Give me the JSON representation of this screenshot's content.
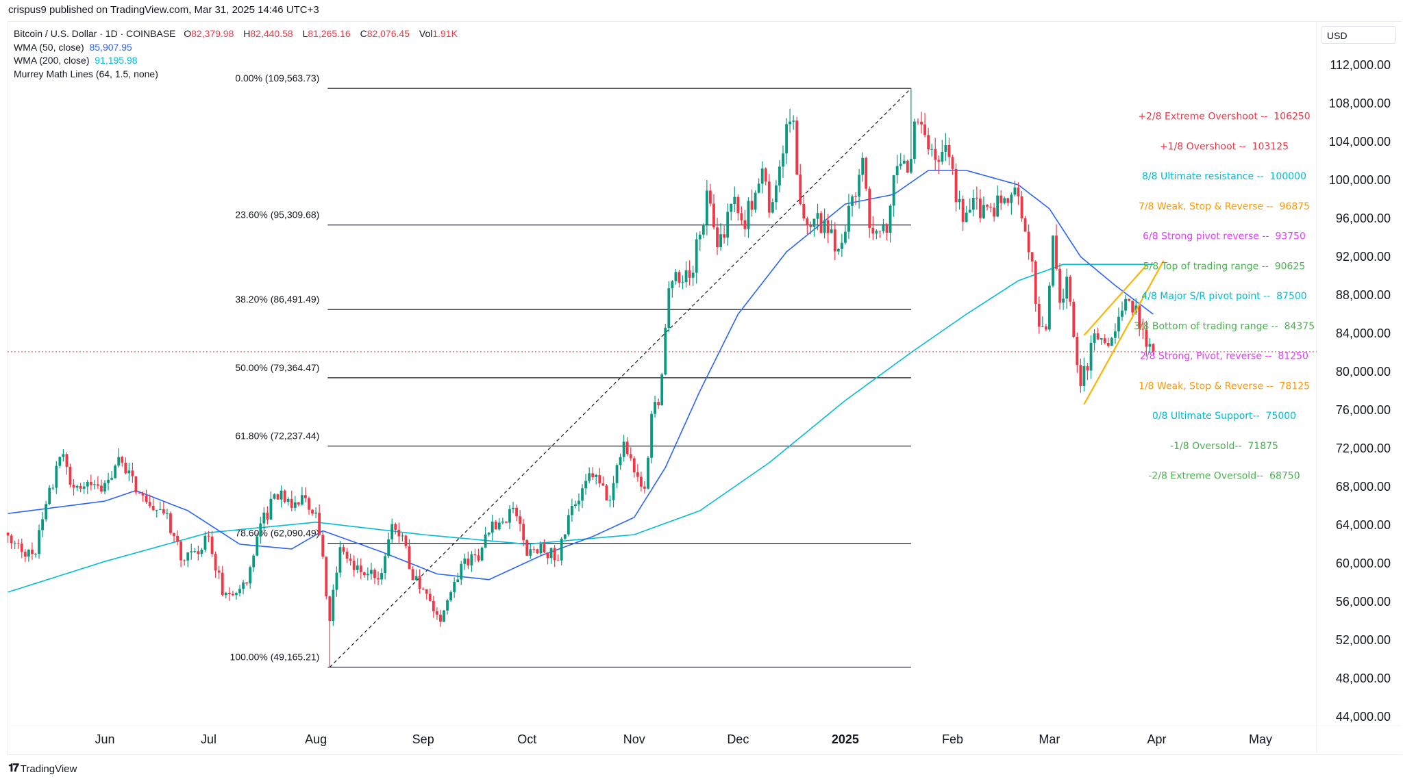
{
  "published": "crispus9 published on TradingView.com, Mar 31, 2025 14:46 UTC+3",
  "legend": {
    "symbol": "Bitcoin / U.S. Dollar · 1D · COINBASE",
    "o_label": "O",
    "o": "82,379.98",
    "h_label": "H",
    "h": "82,440.58",
    "l_label": "L",
    "l": "81,265.16",
    "c_label": "C",
    "c": "82,076.45",
    "vol_label": "Vol",
    "vol": "1.91K",
    "wma50": {
      "label": "WMA (50, close)",
      "value": "85,907.95"
    },
    "wma200": {
      "label": "WMA (200, close)",
      "value": "91,195.98"
    },
    "murrey": {
      "label": "Murrey Math Lines (64, 1.5, none)"
    }
  },
  "currency": "USD",
  "footer": {
    "brand": "TradingView"
  },
  "colors": {
    "up": "#089981",
    "down": "#F23645",
    "wma50": "#2962FF",
    "wma200": "#00BCD4",
    "wedge": "#FFB300",
    "last_price": "#F23645"
  },
  "chart_data": {
    "type": "candlestick",
    "title": "",
    "ylim": [
      42000,
      114000
    ],
    "grid": false,
    "y_ticks": [
      "112,000.00",
      "108,000.00",
      "104,000.00",
      "100,000.00",
      "96,000.00",
      "92,000.00",
      "88,000.00",
      "84,000.00",
      "80,000.00",
      "76,000.00",
      "72,000.00",
      "68,000.00",
      "64,000.00",
      "60,000.00",
      "56,000.00",
      "52,000.00",
      "48,000.00",
      "44,000.00"
    ],
    "x_ticks": [
      {
        "date": "2024-06-01",
        "label": "Jun"
      },
      {
        "date": "2024-07-01",
        "label": "Jul"
      },
      {
        "date": "2024-08-01",
        "label": "Aug"
      },
      {
        "date": "2024-09-01",
        "label": "Sep"
      },
      {
        "date": "2024-10-01",
        "label": "Oct"
      },
      {
        "date": "2024-11-01",
        "label": "Nov"
      },
      {
        "date": "2024-12-01",
        "label": "Dec"
      },
      {
        "date": "2025-01-01",
        "label": "2025",
        "bold": true
      },
      {
        "date": "2025-02-01",
        "label": "Feb"
      },
      {
        "date": "2025-03-01",
        "label": "Mar"
      },
      {
        "date": "2025-04-01",
        "label": "Apr"
      },
      {
        "date": "2025-05-01",
        "label": "May"
      }
    ],
    "close_path": [
      [
        "2024-05-04",
        62.9
      ],
      [
        "2024-05-08",
        61.2
      ],
      [
        "2024-05-12",
        61.0
      ],
      [
        "2024-05-15",
        66.2
      ],
      [
        "2024-05-20",
        71.4
      ],
      [
        "2024-05-23",
        67.9
      ],
      [
        "2024-05-27",
        68.5
      ],
      [
        "2024-05-31",
        67.5
      ],
      [
        "2024-06-05",
        71.1
      ],
      [
        "2024-06-07",
        69.4
      ],
      [
        "2024-06-11",
        67.3
      ],
      [
        "2024-06-14",
        66.0
      ],
      [
        "2024-06-18",
        65.2
      ],
      [
        "2024-06-24",
        60.3
      ],
      [
        "2024-06-28",
        61.0
      ],
      [
        "2024-07-01",
        62.8
      ],
      [
        "2024-07-05",
        56.7
      ],
      [
        "2024-07-08",
        56.7
      ],
      [
        "2024-07-12",
        57.9
      ],
      [
        "2024-07-15",
        62.8
      ],
      [
        "2024-07-20",
        67.2
      ],
      [
        "2024-07-22",
        67.6
      ],
      [
        "2024-07-25",
        65.8
      ],
      [
        "2024-07-29",
        66.8
      ],
      [
        "2024-08-01",
        65.3
      ],
      [
        "2024-08-03",
        60.7
      ],
      [
        "2024-08-05",
        54.0
      ],
      [
        "2024-08-08",
        61.7
      ],
      [
        "2024-08-12",
        59.3
      ],
      [
        "2024-08-16",
        58.9
      ],
      [
        "2024-08-20",
        59.0
      ],
      [
        "2024-08-23",
        64.1
      ],
      [
        "2024-08-26",
        62.9
      ],
      [
        "2024-08-28",
        59.4
      ],
      [
        "2024-09-01",
        57.3
      ],
      [
        "2024-09-06",
        53.9
      ],
      [
        "2024-09-09",
        57.0
      ],
      [
        "2024-09-13",
        60.5
      ],
      [
        "2024-09-17",
        60.3
      ],
      [
        "2024-09-20",
        63.2
      ],
      [
        "2024-09-27",
        65.8
      ],
      [
        "2024-10-01",
        60.8
      ],
      [
        "2024-10-05",
        62.0
      ],
      [
        "2024-10-10",
        60.3
      ],
      [
        "2024-10-14",
        66.0
      ],
      [
        "2024-10-20",
        69.0
      ],
      [
        "2024-10-25",
        66.6
      ],
      [
        "2024-10-29",
        72.7
      ],
      [
        "2024-11-01",
        69.5
      ],
      [
        "2024-11-04",
        67.8
      ],
      [
        "2024-11-06",
        75.6
      ],
      [
        "2024-11-08",
        76.5
      ],
      [
        "2024-11-11",
        88.7
      ],
      [
        "2024-11-13",
        90.4
      ],
      [
        "2024-11-17",
        89.8
      ],
      [
        "2024-11-20",
        94.3
      ],
      [
        "2024-11-22",
        98.9
      ],
      [
        "2024-11-25",
        93.0
      ],
      [
        "2024-11-29",
        97.5
      ],
      [
        "2024-12-02",
        95.8
      ],
      [
        "2024-12-05",
        96.9
      ],
      [
        "2024-12-08",
        101.2
      ],
      [
        "2024-12-10",
        96.6
      ],
      [
        "2024-12-13",
        101.4
      ],
      [
        "2024-12-16",
        106.1
      ],
      [
        "2024-12-17",
        106.2
      ],
      [
        "2024-12-19",
        97.5
      ],
      [
        "2024-12-22",
        95.1
      ],
      [
        "2024-12-26",
        95.8
      ],
      [
        "2024-12-30",
        92.8
      ],
      [
        "2025-01-01",
        94.6
      ],
      [
        "2025-01-06",
        102.3
      ],
      [
        "2025-01-08",
        95.0
      ],
      [
        "2025-01-10",
        94.7
      ],
      [
        "2025-01-13",
        94.5
      ],
      [
        "2025-01-15",
        100.5
      ],
      [
        "2025-01-20",
        102.2
      ],
      [
        "2025-01-21",
        106.1
      ],
      [
        "2025-01-24",
        104.7
      ],
      [
        "2025-01-27",
        102.1
      ],
      [
        "2025-01-31",
        102.4
      ],
      [
        "2025-02-02",
        97.7
      ],
      [
        "2025-02-05",
        96.6
      ],
      [
        "2025-02-10",
        97.4
      ],
      [
        "2025-02-15",
        97.6
      ],
      [
        "2025-02-20",
        98.3
      ],
      [
        "2025-02-24",
        91.5
      ],
      [
        "2025-02-26",
        84.7
      ],
      [
        "2025-02-28",
        84.4
      ],
      [
        "2025-03-02",
        94.2
      ],
      [
        "2025-03-04",
        87.2
      ],
      [
        "2025-03-06",
        89.9
      ],
      [
        "2025-03-09",
        80.7
      ],
      [
        "2025-03-10",
        78.5
      ],
      [
        "2025-03-14",
        84.0
      ],
      [
        "2025-03-18",
        82.7
      ],
      [
        "2025-03-20",
        84.2
      ],
      [
        "2025-03-24",
        87.4
      ],
      [
        "2025-03-26",
        86.9
      ],
      [
        "2025-03-28",
        84.4
      ],
      [
        "2025-03-29",
        82.6
      ],
      [
        "2025-03-31",
        82.1
      ]
    ],
    "price_unit": "thousand USD",
    "wma50": [
      [
        "2024-05-04",
        65.2
      ],
      [
        "2024-06-01",
        66.5
      ],
      [
        "2024-06-10",
        67.6
      ],
      [
        "2024-06-25",
        65.5
      ],
      [
        "2024-07-10",
        62.0
      ],
      [
        "2024-07-25",
        61.5
      ],
      [
        "2024-08-03",
        63.4
      ],
      [
        "2024-08-20",
        61.2
      ],
      [
        "2024-09-05",
        58.9
      ],
      [
        "2024-09-20",
        58.3
      ],
      [
        "2024-10-05",
        60.8
      ],
      [
        "2024-10-20",
        62.8
      ],
      [
        "2024-11-01",
        64.8
      ],
      [
        "2024-11-10",
        70
      ],
      [
        "2024-11-20",
        78
      ],
      [
        "2024-12-01",
        86
      ],
      [
        "2024-12-15",
        92.5
      ],
      [
        "2025-01-01",
        97.5
      ],
      [
        "2025-01-15",
        98.5
      ],
      [
        "2025-01-25",
        101
      ],
      [
        "2025-02-05",
        101
      ],
      [
        "2025-02-20",
        99.5
      ],
      [
        "2025-03-01",
        97
      ],
      [
        "2025-03-10",
        92
      ],
      [
        "2025-03-20",
        89
      ],
      [
        "2025-03-31",
        86
      ]
    ],
    "wma200": [
      [
        "2024-05-04",
        57.0
      ],
      [
        "2024-06-01",
        60.2
      ],
      [
        "2024-07-01",
        63.2
      ],
      [
        "2024-08-01",
        64.3
      ],
      [
        "2024-09-01",
        63.0
      ],
      [
        "2024-10-01",
        62.0
      ],
      [
        "2024-11-01",
        63.0
      ],
      [
        "2024-11-20",
        65.5
      ],
      [
        "2024-12-10",
        70.5
      ],
      [
        "2025-01-01",
        77.0
      ],
      [
        "2025-01-20",
        82
      ],
      [
        "2025-02-05",
        86
      ],
      [
        "2025-02-20",
        89.5
      ],
      [
        "2025-03-05",
        91.2
      ],
      [
        "2025-03-31",
        91.2
      ]
    ],
    "last_price": 82076.45,
    "fib": {
      "from": [
        "2024-08-05",
        49165.21
      ],
      "to": [
        "2025-01-20",
        109563.73
      ],
      "levels": [
        {
          "label": "0.00% (109,563.73)",
          "price": 109563.73
        },
        {
          "label": "23.60% (95,309.68)",
          "price": 95309.68
        },
        {
          "label": "38.20% (86,491.49)",
          "price": 86491.49
        },
        {
          "label": "50.00% (79,364.47)",
          "price": 79364.47
        },
        {
          "label": "61.80% (72,237.44)",
          "price": 72237.44
        },
        {
          "label": "78.60% (62,090.49)",
          "price": 62090.49
        },
        {
          "label": "100.00% (49,165.21)",
          "price": 49165.21
        }
      ]
    },
    "wedge": [
      [
        [
          "2025-03-11",
          83.8
        ],
        [
          "2025-03-29",
          91.1
        ]
      ],
      [
        [
          "2025-03-11",
          76.6
        ],
        [
          "2025-04-03",
          91.6
        ]
      ]
    ],
    "murrey": [
      {
        "label": "+2/8 Extreme Overshoot --  106250",
        "price": 106250,
        "color": "#F23645"
      },
      {
        "label": "+1/8 Overshoot --  103125",
        "price": 103125,
        "color": "#F23645"
      },
      {
        "label": "8/8 Ultimate resistance --  100000",
        "price": 100000,
        "color": "#00BCD4"
      },
      {
        "label": "7/8 Weak, Stop & Reverse --  96875",
        "price": 96875,
        "color": "#FF9800"
      },
      {
        "label": "6/8 Strong pivot reverse --  93750",
        "price": 93750,
        "color": "#E040FB"
      },
      {
        "label": "5/8 Top of trading range --  90625",
        "price": 90625,
        "color": "#4CAF50"
      },
      {
        "label": "4/8 Major S/R pivot point --  87500",
        "price": 87500,
        "color": "#00BCD4"
      },
      {
        "label": "3/8 Bottom of trading range --  84375",
        "price": 84375,
        "color": "#4CAF50"
      },
      {
        "label": "2/8 Strong, Pivot, reverse --  81250",
        "price": 81250,
        "color": "#E040FB"
      },
      {
        "label": "1/8 Weak, Stop & Reverse --  78125",
        "price": 78125,
        "color": "#FF9800"
      },
      {
        "label": "0/8 Ultimate Support--  75000",
        "price": 75000,
        "color": "#00BCD4"
      },
      {
        "label": "-1/8 Oversold--  71875",
        "price": 71875,
        "color": "#4CAF50"
      },
      {
        "label": "-2/8 Extreme Oversold--  68750",
        "price": 68750,
        "color": "#4CAF50"
      }
    ]
  }
}
